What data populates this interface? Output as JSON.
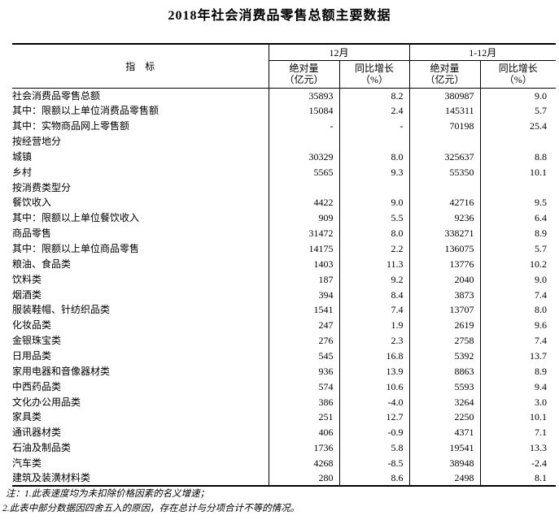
{
  "title": "2018年社会消费品零售总额主要数据",
  "table": {
    "indicator_header": "指　标",
    "groups": [
      {
        "label": "12月"
      },
      {
        "label": "1-12月"
      }
    ],
    "sub_headers": [
      {
        "line1": "绝对量",
        "line2": "（亿元）"
      },
      {
        "line1": "同比增长",
        "line2": "（%）"
      },
      {
        "line1": "绝对量",
        "line2": "（亿元）"
      },
      {
        "line1": "同比增长",
        "line2": "（%）"
      }
    ],
    "rows": [
      {
        "label": "社会消费品零售总额",
        "level": 0,
        "values": [
          "35893",
          "8.2",
          "380987",
          "9.0"
        ]
      },
      {
        "label": "其中：限额以上单位消费品零售额",
        "level": 1,
        "values": [
          "15084",
          "2.4",
          "145311",
          "5.7"
        ]
      },
      {
        "label": "其中：实物商品网上零售额",
        "level": 1,
        "values": [
          "-",
          "-",
          "70198",
          "25.4"
        ]
      },
      {
        "label": "按经营地分",
        "level": 0,
        "values": [
          "",
          "",
          "",
          ""
        ]
      },
      {
        "label": "城镇",
        "level": 1,
        "values": [
          "30329",
          "8.0",
          "325637",
          "8.8"
        ]
      },
      {
        "label": "乡村",
        "level": 1,
        "values": [
          "5565",
          "9.3",
          "55350",
          "10.1"
        ]
      },
      {
        "label": "按消费类型分",
        "level": 0,
        "values": [
          "",
          "",
          "",
          ""
        ]
      },
      {
        "label": "餐饮收入",
        "level": 1,
        "values": [
          "4422",
          "9.0",
          "42716",
          "9.5"
        ]
      },
      {
        "label": "其中：限额以上单位餐饮收入",
        "level": 2,
        "values": [
          "909",
          "5.5",
          "9236",
          "6.4"
        ]
      },
      {
        "label": "商品零售",
        "level": 1,
        "values": [
          "31472",
          "8.0",
          "338271",
          "8.9"
        ]
      },
      {
        "label": "其中：限额以上单位商品零售",
        "level": 2,
        "values": [
          "14175",
          "2.2",
          "136075",
          "5.7"
        ]
      },
      {
        "label": "粮油、食品类",
        "level": 3,
        "values": [
          "1403",
          "11.3",
          "13776",
          "10.2"
        ]
      },
      {
        "label": "饮料类",
        "level": 3,
        "values": [
          "187",
          "9.2",
          "2040",
          "9.0"
        ]
      },
      {
        "label": "烟酒类",
        "level": 3,
        "values": [
          "394",
          "8.4",
          "3873",
          "7.4"
        ]
      },
      {
        "label": "服装鞋帽、针纺织品类",
        "level": 3,
        "values": [
          "1541",
          "7.4",
          "13707",
          "8.0"
        ]
      },
      {
        "label": "化妆品类",
        "level": 3,
        "values": [
          "247",
          "1.9",
          "2619",
          "9.6"
        ]
      },
      {
        "label": "金银珠宝类",
        "level": 3,
        "values": [
          "276",
          "2.3",
          "2758",
          "7.4"
        ]
      },
      {
        "label": "日用品类",
        "level": 3,
        "values": [
          "545",
          "16.8",
          "5392",
          "13.7"
        ]
      },
      {
        "label": "家用电器和音像器材类",
        "level": 3,
        "values": [
          "936",
          "13.9",
          "8863",
          "8.9"
        ]
      },
      {
        "label": "中西药品类",
        "level": 3,
        "values": [
          "574",
          "10.6",
          "5593",
          "9.4"
        ]
      },
      {
        "label": "文化办公用品类",
        "level": 3,
        "values": [
          "386",
          "-4.0",
          "3264",
          "3.0"
        ]
      },
      {
        "label": "家具类",
        "level": 3,
        "values": [
          "251",
          "12.7",
          "2250",
          "10.1"
        ]
      },
      {
        "label": "通讯器材类",
        "level": 3,
        "values": [
          "406",
          "-0.9",
          "4371",
          "7.1"
        ]
      },
      {
        "label": "石油及制品类",
        "level": 3,
        "values": [
          "1736",
          "5.8",
          "19541",
          "13.3"
        ]
      },
      {
        "label": "汽车类",
        "level": 3,
        "values": [
          "4268",
          "-8.5",
          "38948",
          "-2.4"
        ]
      },
      {
        "label": "建筑及装潢材料类",
        "level": 3,
        "values": [
          "280",
          "8.6",
          "2498",
          "8.1"
        ]
      }
    ]
  },
  "notes": [
    "注：1.此表速度均为未扣除价格因素的名义增速；",
    "2.此表中部分数据因四舍五入的原因，存在总计与分项合计不等的情况。"
  ]
}
